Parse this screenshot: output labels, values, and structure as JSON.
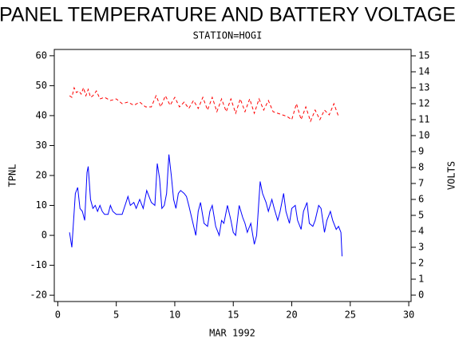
{
  "chart_data": {
    "type": "line",
    "title": "PANEL TEMPERATURE AND BATTERY VOLTAGE",
    "subtitle": "STATION=HOGI",
    "x_label": "MAR 1992",
    "y_label": "TPNL",
    "y2_label": "VOLTS",
    "xlim": [
      -0.3,
      30.2
    ],
    "xticks": [
      0,
      5,
      10,
      15,
      20,
      25,
      30
    ],
    "ylim": [
      -22.1,
      62.1
    ],
    "yticks": [
      -20,
      -10,
      0,
      10,
      20,
      30,
      40,
      50,
      60
    ],
    "y2lim": [
      -0.4,
      15.4
    ],
    "y2ticks": [
      0,
      1,
      2,
      3,
      4,
      5,
      6,
      7,
      8,
      9,
      10,
      11,
      12,
      13,
      14,
      15
    ],
    "series": [
      {
        "name": "TPNL",
        "color": "#0000ff",
        "dash": false,
        "x": [
          1.0,
          1.2,
          1.5,
          1.7,
          1.9,
          2.1,
          2.3,
          2.5,
          2.6,
          2.8,
          3.0,
          3.2,
          3.4,
          3.6,
          3.8,
          4.0,
          4.3,
          4.5,
          4.7,
          5.0,
          5.5,
          6.0,
          6.2,
          6.5,
          6.7,
          7.0,
          7.3,
          7.6,
          7.8,
          8.0,
          8.3,
          8.5,
          8.7,
          8.9,
          9.1,
          9.3,
          9.5,
          9.7,
          9.9,
          10.1,
          10.3,
          10.5,
          10.8,
          11.0,
          11.2,
          11.5,
          11.8,
          12.0,
          12.2,
          12.5,
          12.8,
          13.0,
          13.2,
          13.5,
          13.8,
          14.0,
          14.2,
          14.5,
          14.8,
          15.0,
          15.2,
          15.5,
          15.8,
          16.0,
          16.2,
          16.5,
          16.8,
          17.0,
          17.3,
          17.5,
          17.8,
          18.0,
          18.3,
          18.5,
          18.8,
          19.0,
          19.3,
          19.5,
          19.8,
          20.0,
          20.3,
          20.5,
          20.8,
          21.0,
          21.3,
          21.5,
          21.8,
          22.0,
          22.3,
          22.5,
          22.8,
          23.0,
          23.3,
          23.5,
          23.8,
          24.0,
          24.2,
          24.3
        ],
        "values": [
          1,
          -4,
          14,
          16,
          9,
          8,
          5,
          21,
          23,
          12,
          9,
          10,
          8,
          10,
          8,
          7,
          7,
          10,
          8,
          7,
          7,
          13,
          10,
          11,
          9,
          12,
          9,
          15,
          13,
          11,
          10,
          24,
          19,
          9,
          10,
          14,
          27,
          20,
          12,
          9,
          14,
          15,
          14,
          13,
          10,
          5,
          0,
          8,
          11,
          4,
          3,
          8,
          10,
          3,
          0,
          5,
          4,
          10,
          5,
          1,
          0,
          10,
          6,
          4,
          1,
          4,
          -3,
          0,
          18,
          14,
          11,
          8,
          12,
          9,
          5,
          8,
          14,
          8,
          4,
          9,
          10,
          5,
          2,
          8,
          11,
          4,
          3,
          5,
          10,
          9,
          1,
          5,
          8,
          5,
          2,
          3,
          1,
          -7
        ]
      },
      {
        "name": "VOLTS",
        "color": "#ff0000",
        "dash": true,
        "axis": "y2",
        "x": [
          1.0,
          1.2,
          1.4,
          1.6,
          1.8,
          2.0,
          2.2,
          2.4,
          2.6,
          2.8,
          3.0,
          3.3,
          3.6,
          4.0,
          4.5,
          5.0,
          5.5,
          6.0,
          6.5,
          7.0,
          7.5,
          8.0,
          8.4,
          8.8,
          9.2,
          9.6,
          10.0,
          10.4,
          10.8,
          11.2,
          11.6,
          12.0,
          12.4,
          12.8,
          13.2,
          13.6,
          14.0,
          14.4,
          14.8,
          15.2,
          15.6,
          16.0,
          16.4,
          16.8,
          17.2,
          17.6,
          18.0,
          18.4,
          18.8,
          19.2,
          19.6,
          20.0,
          20.4,
          20.8,
          21.2,
          21.6,
          22.0,
          22.4,
          22.8,
          23.2,
          23.6,
          24.0
        ],
        "values": [
          12.5,
          12.4,
          13.0,
          12.7,
          12.8,
          12.6,
          13.0,
          12.5,
          12.9,
          12.4,
          12.5,
          12.8,
          12.3,
          12.4,
          12.2,
          12.3,
          12.0,
          12.1,
          11.9,
          12.1,
          11.8,
          11.8,
          12.5,
          11.8,
          12.5,
          11.9,
          12.4,
          11.8,
          12.1,
          11.7,
          12.2,
          11.7,
          12.4,
          11.6,
          12.4,
          11.5,
          12.3,
          11.5,
          12.3,
          11.4,
          12.3,
          11.5,
          12.3,
          11.4,
          12.3,
          11.6,
          12.2,
          11.5,
          11.4,
          11.3,
          11.2,
          11.0,
          12.0,
          11.0,
          11.8,
          10.9,
          11.6,
          11.0,
          11.6,
          11.3,
          12.0,
          11.2
        ]
      }
    ]
  }
}
